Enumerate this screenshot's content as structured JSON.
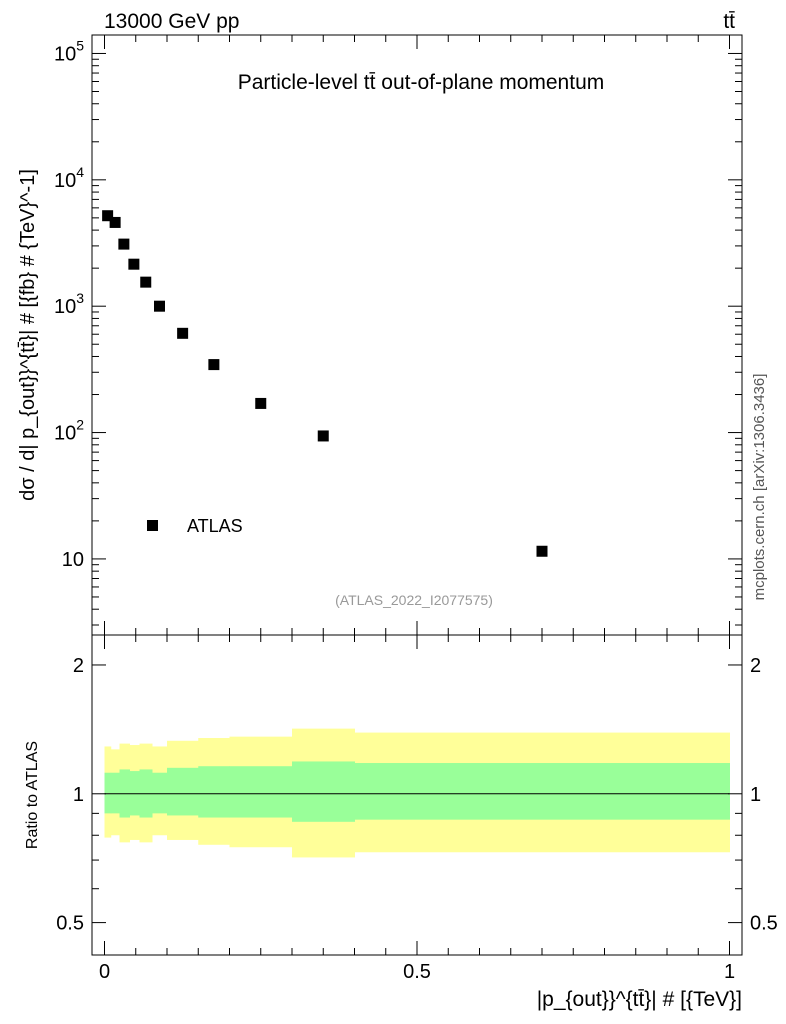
{
  "header": {
    "left": "13000 GeV pp",
    "right": "tt̄"
  },
  "side_label": "mcplots.cern.ch [arXiv:1306.3436]",
  "chart_data": [
    {
      "type": "scatter",
      "title": "Particle-level tt̄ out-of-plane momentum",
      "ylabel": "dσ / d| p_{out}}^{tt̄}| # [{fb} # {TeV}^-1]",
      "y_scale": "log",
      "ylim": [
        2.5,
        140000
      ],
      "xlim": [
        -0.02,
        1.02
      ],
      "y_tick_labels": [
        "10",
        "10^2",
        "10^3",
        "10^4",
        "10^5"
      ],
      "legend": {
        "position": "bottom-left",
        "entries": [
          "ATLAS"
        ]
      },
      "watermark": "(ATLAS_2022_I2077575)",
      "series": [
        {
          "name": "ATLAS",
          "x": [
            0.005,
            0.017,
            0.031,
            0.047,
            0.066,
            0.088,
            0.125,
            0.175,
            0.25,
            0.35,
            0.7
          ],
          "values": [
            5200,
            4600,
            3100,
            2150,
            1550,
            1000,
            610,
            345,
            170,
            94,
            11.5
          ]
        }
      ]
    },
    {
      "type": "area",
      "ylabel": "Ratio to ATLAS",
      "xlabel": "|p_{out}}^{tt̄}| # [{TeV}]",
      "y_scale": "log",
      "ylim": [
        0.42,
        2.35
      ],
      "xlim": [
        -0.02,
        1.02
      ],
      "x_tick_labels": [
        "0",
        "0.5",
        "1"
      ],
      "y_tick_labels": [
        "0.5",
        "1",
        "2"
      ],
      "reference_line": 1,
      "bin_edges": [
        0,
        0.01,
        0.024,
        0.04,
        0.056,
        0.076,
        0.1,
        0.15,
        0.2,
        0.3,
        0.4,
        1.0
      ],
      "bands": [
        {
          "name": "outer",
          "color": "#ffff99",
          "low": [
            0.79,
            0.8,
            0.77,
            0.78,
            0.77,
            0.8,
            0.78,
            0.76,
            0.75,
            0.71,
            0.73
          ],
          "high": [
            1.29,
            1.27,
            1.31,
            1.3,
            1.31,
            1.29,
            1.33,
            1.35,
            1.36,
            1.42,
            1.39
          ]
        },
        {
          "name": "inner",
          "color": "#99ff99",
          "low": [
            0.9,
            0.9,
            0.88,
            0.89,
            0.88,
            0.9,
            0.89,
            0.88,
            0.88,
            0.86,
            0.87
          ],
          "high": [
            1.12,
            1.12,
            1.14,
            1.13,
            1.14,
            1.12,
            1.15,
            1.16,
            1.16,
            1.19,
            1.18
          ]
        }
      ]
    }
  ]
}
